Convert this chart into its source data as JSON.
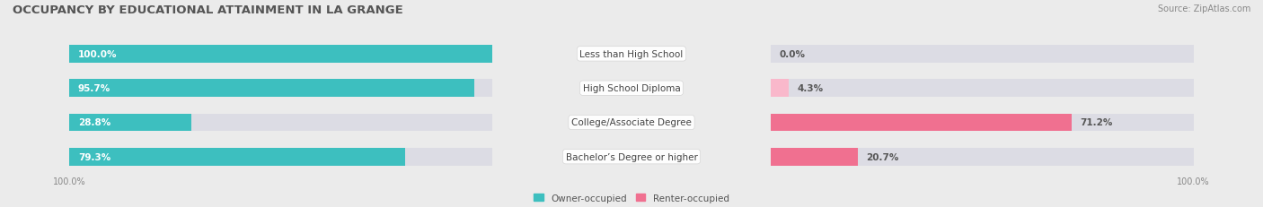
{
  "title": "OCCUPANCY BY EDUCATIONAL ATTAINMENT IN LA GRANGE",
  "source": "Source: ZipAtlas.com",
  "categories": [
    "Less than High School",
    "High School Diploma",
    "College/Associate Degree",
    "Bachelor’s Degree or higher"
  ],
  "owner_values": [
    100.0,
    95.7,
    28.8,
    79.3
  ],
  "renter_values": [
    0.0,
    4.3,
    71.2,
    20.7
  ],
  "owner_color": "#3DBFBF",
  "renter_color": "#F07090",
  "renter_color_light": "#F9B8CB",
  "owner_label": "Owner-occupied",
  "renter_label": "Renter-occupied",
  "bg_color": "#EBEBEB",
  "bar_bg_color": "#DCDCE4",
  "title_fontsize": 9.5,
  "source_fontsize": 7,
  "label_fontsize": 7.5,
  "value_fontsize": 7.5,
  "bar_height": 0.52,
  "figsize": [
    14.06,
    2.32
  ],
  "dpi": 100
}
